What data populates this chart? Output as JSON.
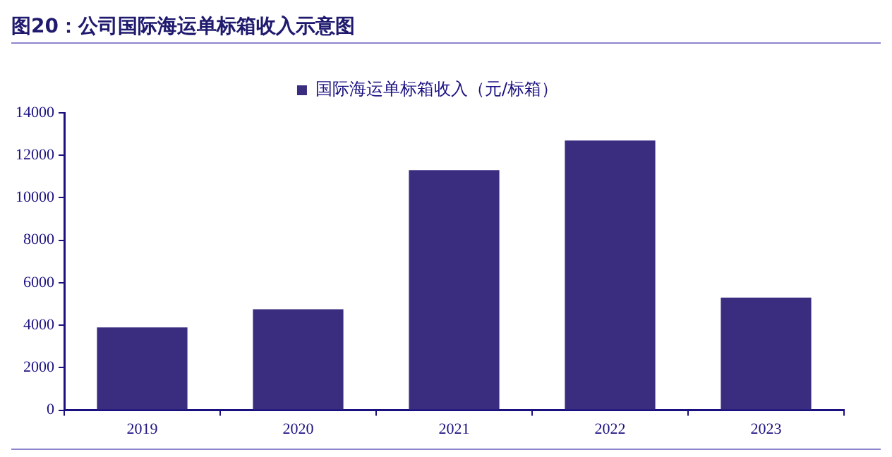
{
  "chart_data": {
    "type": "bar",
    "title": "图20：公司国际海运单标箱收入示意图",
    "categories": [
      "2019",
      "2020",
      "2021",
      "2022",
      "2023"
    ],
    "series": [
      {
        "name": "国际海运单标箱收入（元/标箱）",
        "color": "#3a2d80",
        "values": [
          3900,
          4750,
          11300,
          12700,
          5300
        ]
      }
    ],
    "ylim": [
      0,
      14000
    ],
    "yticks": [
      0,
      2000,
      4000,
      6000,
      8000,
      10000,
      12000,
      14000
    ],
    "grid": false,
    "legend": "top"
  }
}
